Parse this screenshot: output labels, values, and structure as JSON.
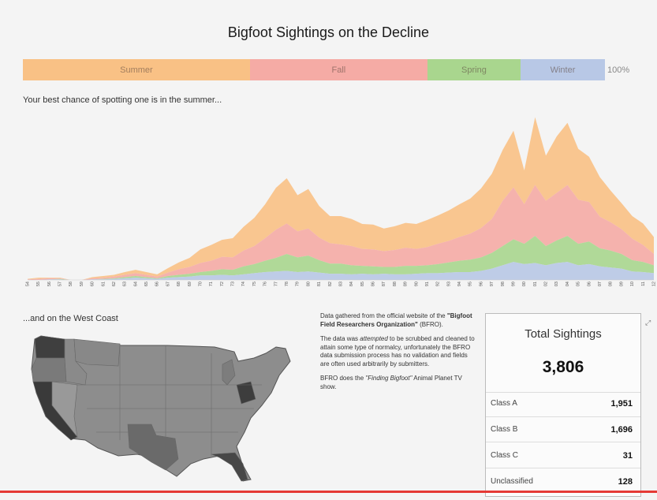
{
  "title": "Bigfoot Sightings on the Decline",
  "season_bar": {
    "segments": [
      {
        "label": "Summer",
        "color": "#f9c185",
        "share": 0.39
      },
      {
        "label": "Fall",
        "color": "#f5aba5",
        "share": 0.305
      },
      {
        "label": "Spring",
        "color": "#a9d68e",
        "share": 0.16
      },
      {
        "label": "Winter",
        "color": "#b8c8e6",
        "share": 0.145
      }
    ],
    "percent_label": "100%"
  },
  "subtitle": "Your best chance of spotting one is in the summer...",
  "chart_data": {
    "type": "area",
    "stacked": true,
    "x": [
      "1954",
      "1955",
      "1956",
      "1957",
      "1958",
      "1959",
      "1960",
      "1961",
      "1962",
      "1963",
      "1964",
      "1965",
      "1966",
      "1967",
      "1968",
      "1969",
      "1970",
      "1971",
      "1972",
      "1973",
      "1974",
      "1975",
      "1976",
      "1977",
      "1978",
      "1979",
      "1980",
      "1981",
      "1982",
      "1983",
      "1984",
      "1985",
      "1986",
      "1987",
      "1988",
      "1989",
      "1990",
      "1991",
      "1992",
      "1993",
      "1994",
      "1995",
      "1996",
      "1997",
      "1998",
      "1999",
      "2000",
      "2001",
      "2002",
      "2003",
      "2004",
      "2005",
      "2006",
      "2007",
      "2008",
      "2009",
      "2010",
      "2011",
      "2012"
    ],
    "series": [
      {
        "name": "Winter",
        "color": "#b8c8e6",
        "values": [
          0,
          0,
          1,
          1,
          0,
          0,
          1,
          1,
          2,
          3,
          4,
          3,
          2,
          4,
          5,
          6,
          8,
          8,
          9,
          8,
          10,
          12,
          14,
          15,
          16,
          14,
          15,
          13,
          11,
          11,
          10,
          11,
          10,
          11,
          10,
          10,
          11,
          12,
          12,
          13,
          14,
          14,
          16,
          20,
          26,
          32,
          28,
          30,
          26,
          30,
          32,
          26,
          28,
          24,
          22,
          20,
          15,
          14,
          12
        ]
      },
      {
        "name": "Spring",
        "color": "#a9d68e",
        "values": [
          0,
          0,
          0,
          1,
          0,
          0,
          0,
          1,
          1,
          2,
          3,
          2,
          1,
          3,
          4,
          5,
          6,
          8,
          10,
          10,
          14,
          16,
          20,
          24,
          30,
          26,
          28,
          22,
          18,
          18,
          16,
          14,
          14,
          12,
          13,
          15,
          14,
          14,
          16,
          18,
          20,
          22,
          24,
          28,
          34,
          40,
          36,
          48,
          34,
          40,
          46,
          38,
          40,
          32,
          30,
          26,
          20,
          18,
          14
        ]
      },
      {
        "name": "Fall",
        "color": "#f5aba5",
        "values": [
          1,
          2,
          2,
          1,
          0,
          0,
          2,
          2,
          3,
          4,
          5,
          4,
          3,
          6,
          10,
          12,
          16,
          18,
          22,
          22,
          28,
          32,
          40,
          50,
          54,
          46,
          48,
          40,
          36,
          34,
          34,
          30,
          30,
          28,
          30,
          32,
          30,
          32,
          36,
          38,
          42,
          46,
          52,
          60,
          80,
          92,
          70,
          90,
          80,
          84,
          90,
          78,
          70,
          56,
          50,
          44,
          38,
          30,
          20
        ]
      },
      {
        "name": "Summer",
        "color": "#f9c185",
        "values": [
          1,
          2,
          1,
          1,
          0,
          0,
          2,
          3,
          3,
          5,
          6,
          5,
          4,
          8,
          12,
          16,
          24,
          28,
          30,
          34,
          42,
          50,
          60,
          74,
          80,
          64,
          70,
          56,
          48,
          50,
          48,
          44,
          44,
          40,
          42,
          44,
          44,
          48,
          50,
          54,
          58,
          62,
          70,
          80,
          90,
          100,
          60,
          120,
          80,
          100,
          110,
          90,
          80,
          70,
          56,
          46,
          40,
          38,
          30
        ]
      }
    ],
    "ylim": [
      0,
      300
    ],
    "grid": false,
    "legend": "top"
  },
  "map_title": "...and on the West Coast",
  "info": {
    "p1_a": "Data gathered from the official website of the ",
    "p1_b": "\"Bigfoot Field Researchers Organization\"",
    "p1_c": " (BFRO).",
    "p2_a": "The data was ",
    "p2_b": "attempted",
    "p2_c": " to be scrubbed and cleaned to attain some type of normalcy, unfortunately the BFRO data submission process has no validation and fields are often used arbitrarily by submitters.",
    "p3_a": "BFRO does the ",
    "p3_b": "\"Finding Bigfoot\"",
    "p3_c": " Animal Planet TV show."
  },
  "panel": {
    "title": "Total Sightings",
    "total": "3,806",
    "rows": [
      {
        "label": "Class A",
        "value": "1,951"
      },
      {
        "label": "Class B",
        "value": "1,696"
      },
      {
        "label": "Class C",
        "value": "31"
      },
      {
        "label": "Unclassified",
        "value": "128"
      }
    ]
  },
  "icons": {
    "expand": "expand-icon"
  }
}
